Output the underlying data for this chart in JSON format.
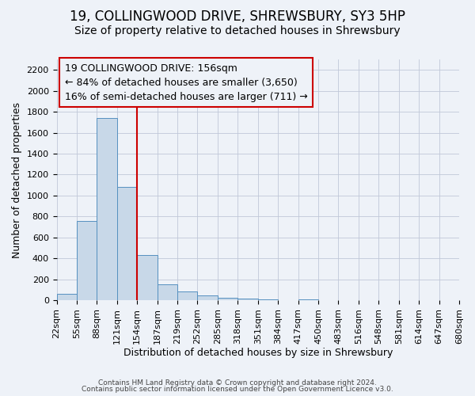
{
  "title": "19, COLLINGWOOD DRIVE, SHREWSBURY, SY3 5HP",
  "subtitle": "Size of property relative to detached houses in Shrewsbury",
  "xlabel": "Distribution of detached houses by size in Shrewsbury",
  "ylabel": "Number of detached properties",
  "footer_lines": [
    "Contains HM Land Registry data © Crown copyright and database right 2024.",
    "Contains public sector information licensed under the Open Government Licence v3.0."
  ],
  "bin_labels": [
    "22sqm",
    "55sqm",
    "88sqm",
    "121sqm",
    "154sqm",
    "187sqm",
    "219sqm",
    "252sqm",
    "285sqm",
    "318sqm",
    "351sqm",
    "384sqm",
    "417sqm",
    "450sqm",
    "483sqm",
    "516sqm",
    "548sqm",
    "581sqm",
    "614sqm",
    "647sqm",
    "680sqm"
  ],
  "bar_values": [
    60,
    760,
    1740,
    1080,
    430,
    155,
    85,
    45,
    25,
    15,
    12,
    0,
    8,
    0,
    0,
    0,
    0,
    0,
    0,
    0
  ],
  "bar_color": "#c8d8e8",
  "bar_edge_color": "#5590c0",
  "vline_x": 4,
  "vline_color": "#cc0000",
  "annotation_box_text": "19 COLLINGWOOD DRIVE: 156sqm\n← 84% of detached houses are smaller (3,650)\n16% of semi-detached houses are larger (711) →",
  "annotation_box_color": "#cc0000",
  "ylim": [
    0,
    2300
  ],
  "yticks": [
    0,
    200,
    400,
    600,
    800,
    1000,
    1200,
    1400,
    1600,
    1800,
    2000,
    2200
  ],
  "grid_color": "#c0c8d8",
  "bg_color": "#eef2f8",
  "title_fontsize": 12,
  "subtitle_fontsize": 10,
  "axis_label_fontsize": 9,
  "tick_fontsize": 8,
  "annotation_fontsize": 9,
  "footer_fontsize": 6.5
}
